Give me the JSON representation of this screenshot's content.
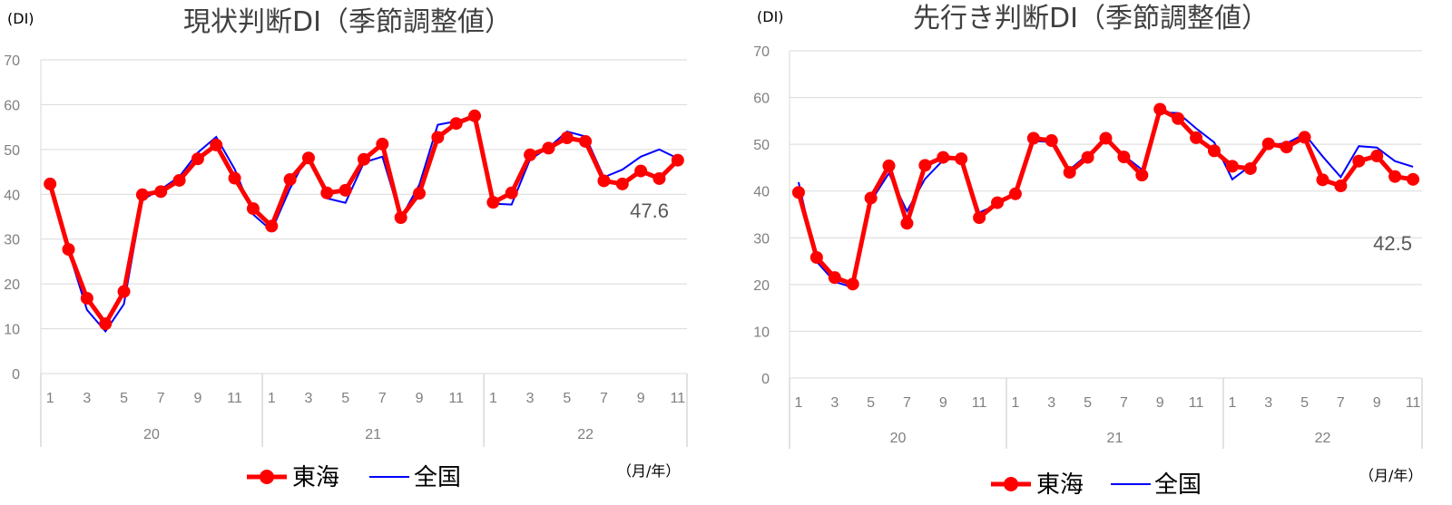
{
  "colors": {
    "tokai": "#ff0000",
    "national": "#0000ff",
    "grid": "#d9d9d9",
    "tick": "#7f7f7f"
  },
  "chart_data": [
    {
      "type": "line",
      "title": "現状判断DI（季節調整値）",
      "ylabel": "(DI)",
      "xlabel": "（月/年）",
      "ylim": [
        0,
        70
      ],
      "yticks": [
        "0",
        "10",
        "20",
        "30",
        "40",
        "50",
        "60",
        "70"
      ],
      "month_labels": [
        "1",
        "3",
        "5",
        "7",
        "9",
        "11"
      ],
      "year_labels": [
        "20",
        "21",
        "22"
      ],
      "x": [
        "2020-01",
        "2020-02",
        "2020-03",
        "2020-04",
        "2020-05",
        "2020-06",
        "2020-07",
        "2020-08",
        "2020-09",
        "2020-10",
        "2020-11",
        "2020-12",
        "2021-01",
        "2021-02",
        "2021-03",
        "2021-04",
        "2021-05",
        "2021-06",
        "2021-07",
        "2021-08",
        "2021-09",
        "2021-10",
        "2021-11",
        "2021-12",
        "2022-01",
        "2022-02",
        "2022-03",
        "2022-04",
        "2022-05",
        "2022-06",
        "2022-07",
        "2022-08",
        "2022-09",
        "2022-10",
        "2022-11"
      ],
      "series": [
        {
          "name": "東海",
          "values": [
            42.3,
            27.7,
            16.8,
            11.1,
            18.3,
            39.9,
            40.6,
            43.1,
            47.9,
            51.0,
            43.6,
            36.8,
            32.9,
            43.3,
            48.1,
            40.3,
            40.9,
            47.8,
            51.2,
            34.8,
            40.2,
            52.7,
            55.8,
            57.5,
            38.2,
            40.3,
            48.8,
            50.3,
            52.6,
            51.8,
            43.0,
            42.3,
            45.2,
            43.5,
            47.6
          ]
        },
        {
          "name": "全国",
          "values": [
            41.9,
            27.4,
            14.2,
            9.4,
            15.5,
            38.8,
            41.1,
            43.9,
            49.3,
            52.8,
            45.6,
            35.5,
            31.9,
            41.3,
            49.0,
            39.1,
            38.1,
            47.1,
            48.4,
            34.7,
            42.1,
            55.5,
            56.3,
            57.5,
            37.9,
            37.7,
            47.8,
            50.4,
            54.0,
            52.9,
            43.8,
            45.5,
            48.4,
            50.0,
            48.0
          ]
        }
      ],
      "end_label": "47.6"
    },
    {
      "type": "line",
      "title": "先行き判断DI（季節調整値）",
      "ylabel": "(DI)",
      "xlabel": "（月/年）",
      "ylim": [
        0,
        70
      ],
      "yticks": [
        "0",
        "10",
        "20",
        "30",
        "40",
        "50",
        "60",
        "70"
      ],
      "month_labels": [
        "1",
        "3",
        "5",
        "7",
        "9",
        "11"
      ],
      "year_labels": [
        "20",
        "21",
        "22"
      ],
      "x": [
        "2020-01",
        "2020-02",
        "2020-03",
        "2020-04",
        "2020-05",
        "2020-06",
        "2020-07",
        "2020-08",
        "2020-09",
        "2020-10",
        "2020-11",
        "2020-12",
        "2021-01",
        "2021-02",
        "2021-03",
        "2021-04",
        "2021-05",
        "2021-06",
        "2021-07",
        "2021-08",
        "2021-09",
        "2021-10",
        "2021-11",
        "2021-12",
        "2022-01",
        "2022-02",
        "2022-03",
        "2022-04",
        "2022-05",
        "2022-06",
        "2022-07",
        "2022-08",
        "2022-09",
        "2022-10",
        "2022-11"
      ],
      "series": [
        {
          "name": "東海",
          "values": [
            39.7,
            25.8,
            21.5,
            20.1,
            38.5,
            45.4,
            33.1,
            45.5,
            47.2,
            46.9,
            34.3,
            37.5,
            39.4,
            51.3,
            50.8,
            44.0,
            47.2,
            51.3,
            47.3,
            43.4,
            57.5,
            55.5,
            51.4,
            48.6,
            45.3,
            44.8,
            50.1,
            49.4,
            51.5,
            42.4,
            41.1,
            46.4,
            47.5,
            43.1,
            42.5
          ]
        },
        {
          "name": "全国",
          "values": [
            41.9,
            24.9,
            20.6,
            19.4,
            37.8,
            43.8,
            35.7,
            42.6,
            46.6,
            47.1,
            35.4,
            37.1,
            39.9,
            50.7,
            50.5,
            44.6,
            47.8,
            51.2,
            47.6,
            44.6,
            56.8,
            56.7,
            53.4,
            50.4,
            42.5,
            45.4,
            49.9,
            50.2,
            52.2,
            47.4,
            43.0,
            49.6,
            49.3,
            46.4,
            45.2
          ]
        }
      ],
      "end_label": "42.5"
    }
  ]
}
